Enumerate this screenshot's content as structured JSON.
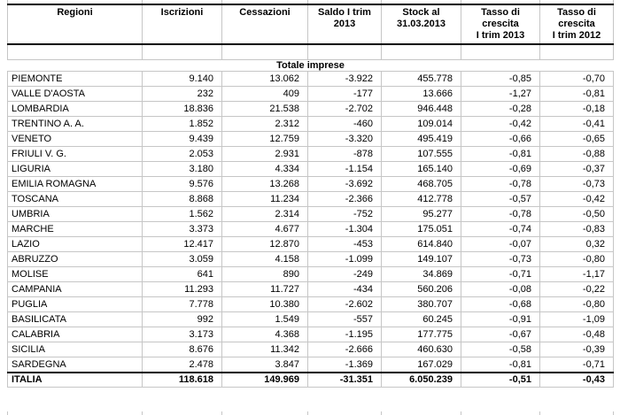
{
  "table": {
    "columns": [
      {
        "id": "regioni",
        "label": "Regioni"
      },
      {
        "id": "iscrizioni",
        "label": "Iscrizioni"
      },
      {
        "id": "cessazioni",
        "label": "Cessazioni"
      },
      {
        "id": "saldo-i-trim-2013",
        "label": "Saldo I trim\n2013"
      },
      {
        "id": "stock-al-31-03-2013",
        "label": "Stock al\n31.03.2013"
      },
      {
        "id": "tasso-crescita-i-trim-2013",
        "label": "Tasso di\ncrescita\nI trim 2013"
      },
      {
        "id": "tasso-crescita-i-trim-2012",
        "label": "Tasso di\ncrescita\nI trim 2012"
      }
    ],
    "section_title": "Totale imprese",
    "rows": [
      {
        "region": "PIEMONTE",
        "values": [
          "9.140",
          "13.062",
          "-3.922",
          "455.778",
          "-0,85",
          "-0,70"
        ]
      },
      {
        "region": "VALLE D'AOSTA",
        "values": [
          "232",
          "409",
          "-177",
          "13.666",
          "-1,27",
          "-0,81"
        ]
      },
      {
        "region": "LOMBARDIA",
        "values": [
          "18.836",
          "21.538",
          "-2.702",
          "946.448",
          "-0,28",
          "-0,18"
        ]
      },
      {
        "region": "TRENTINO A. A.",
        "values": [
          "1.852",
          "2.312",
          "-460",
          "109.014",
          "-0,42",
          "-0,41"
        ]
      },
      {
        "region": "VENETO",
        "values": [
          "9.439",
          "12.759",
          "-3.320",
          "495.419",
          "-0,66",
          "-0,65"
        ]
      },
      {
        "region": "FRIULI V. G.",
        "values": [
          "2.053",
          "2.931",
          "-878",
          "107.555",
          "-0,81",
          "-0,88"
        ]
      },
      {
        "region": "LIGURIA",
        "values": [
          "3.180",
          "4.334",
          "-1.154",
          "165.140",
          "-0,69",
          "-0,37"
        ]
      },
      {
        "region": "EMILIA ROMAGNA",
        "values": [
          "9.576",
          "13.268",
          "-3.692",
          "468.705",
          "-0,78",
          "-0,73"
        ]
      },
      {
        "region": "TOSCANA",
        "values": [
          "8.868",
          "11.234",
          "-2.366",
          "412.778",
          "-0,57",
          "-0,42"
        ]
      },
      {
        "region": "UMBRIA",
        "values": [
          "1.562",
          "2.314",
          "-752",
          "95.277",
          "-0,78",
          "-0,50"
        ]
      },
      {
        "region": "MARCHE",
        "values": [
          "3.373",
          "4.677",
          "-1.304",
          "175.051",
          "-0,74",
          "-0,83"
        ]
      },
      {
        "region": "LAZIO",
        "values": [
          "12.417",
          "12.870",
          "-453",
          "614.840",
          "-0,07",
          "0,32"
        ]
      },
      {
        "region": "ABRUZZO",
        "values": [
          "3.059",
          "4.158",
          "-1.099",
          "149.107",
          "-0,73",
          "-0,80"
        ]
      },
      {
        "region": "MOLISE",
        "values": [
          "641",
          "890",
          "-249",
          "34.869",
          "-0,71",
          "-1,17"
        ]
      },
      {
        "region": "CAMPANIA",
        "values": [
          "11.293",
          "11.727",
          "-434",
          "560.206",
          "-0,08",
          "-0,22"
        ]
      },
      {
        "region": "PUGLIA",
        "values": [
          "7.778",
          "10.380",
          "-2.602",
          "380.707",
          "-0,68",
          "-0,80"
        ]
      },
      {
        "region": "BASILICATA",
        "values": [
          "992",
          "1.549",
          "-557",
          "60.245",
          "-0,91",
          "-1,09"
        ]
      },
      {
        "region": "CALABRIA",
        "values": [
          "3.173",
          "4.368",
          "-1.195",
          "177.775",
          "-0,67",
          "-0,48"
        ]
      },
      {
        "region": "SICILIA",
        "values": [
          "8.676",
          "11.342",
          "-2.666",
          "460.630",
          "-0,58",
          "-0,39"
        ]
      },
      {
        "region": "SARDEGNA",
        "values": [
          "2.478",
          "3.847",
          "-1.369",
          "167.029",
          "-0,81",
          "-0,71"
        ]
      }
    ],
    "total": {
      "region": "ITALIA",
      "values": [
        "118.618",
        "149.969",
        "-31.351",
        "6.050.239",
        "-0,51",
        "-0,43"
      ]
    }
  },
  "colors": {
    "background": "#ffffff",
    "text": "#000000",
    "border_light": "#c6c6c6",
    "border_dark": "#000000"
  }
}
